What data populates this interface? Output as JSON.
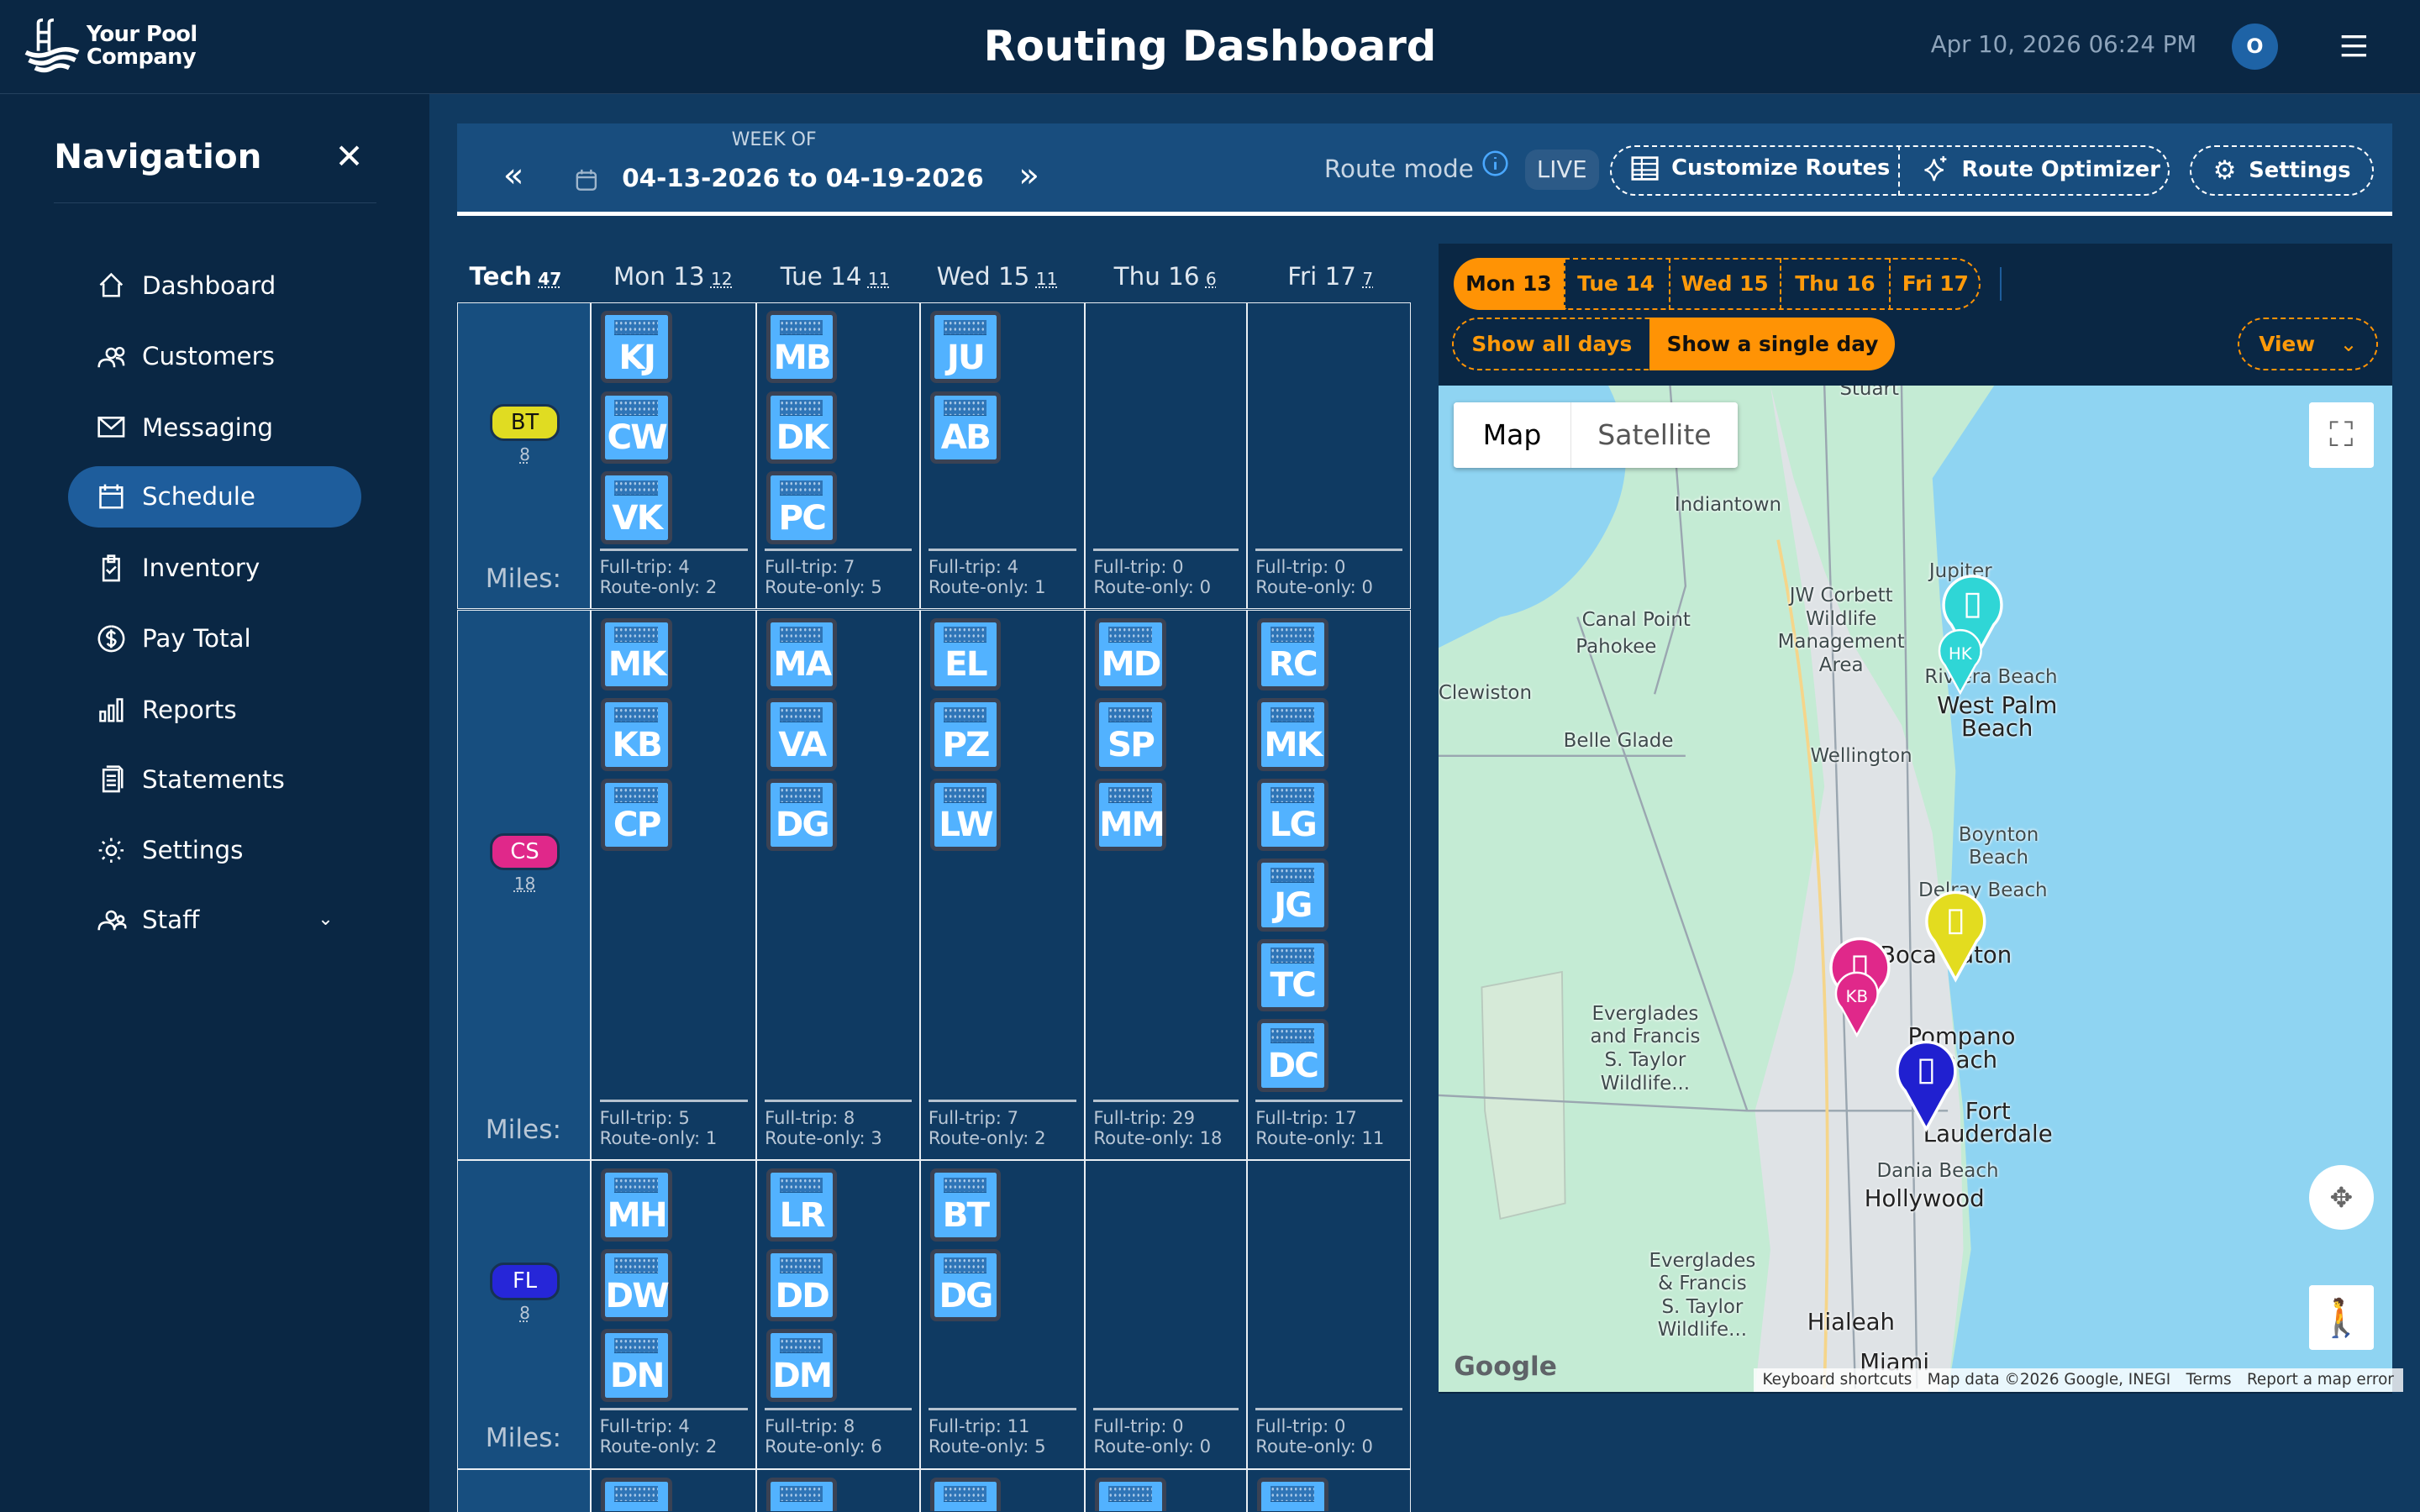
{
  "header": {
    "company_line1": "Your Pool",
    "company_line2": "Company",
    "title": "Routing Dashboard",
    "datetime": "Apr 10, 2026 06:24 PM",
    "avatar": "O"
  },
  "nav": {
    "title": "Navigation",
    "items": [
      {
        "label": "Dashboard",
        "icon": "home-icon"
      },
      {
        "label": "Customers",
        "icon": "users-icon"
      },
      {
        "label": "Messaging",
        "icon": "mail-icon"
      },
      {
        "label": "Schedule",
        "icon": "calendar-icon",
        "active": true
      },
      {
        "label": "Inventory",
        "icon": "clipboard-icon"
      },
      {
        "label": "Pay Total",
        "icon": "dollar-icon"
      },
      {
        "label": "Reports",
        "icon": "bar-chart-icon"
      },
      {
        "label": "Statements",
        "icon": "document-icon"
      },
      {
        "label": "Settings",
        "icon": "gear-icon"
      },
      {
        "label": "Staff",
        "icon": "staff-icon"
      }
    ]
  },
  "toolbar": {
    "week_of": "WEEK OF",
    "range": "04-13-2026 to 04-19-2026",
    "route_mode": "Route mode",
    "mode": "LIVE",
    "customize": "Customize Routes",
    "optimizer": "Route Optimizer",
    "settings": "Settings"
  },
  "schedule": {
    "columns": [
      {
        "label": "Tech",
        "count": "47"
      },
      {
        "label": "Mon 13",
        "count": "12"
      },
      {
        "label": "Tue 14",
        "count": "11"
      },
      {
        "label": "Wed 15",
        "count": "11"
      },
      {
        "label": "Thu 16",
        "count": "6"
      },
      {
        "label": "Fri 17",
        "count": "7"
      }
    ],
    "miles_label": "Miles:",
    "full_prefix": "Full-trip: ",
    "route_prefix": "Route-only: ",
    "rows": [
      {
        "tech": "BT",
        "color": "#e0dc22",
        "count": "8",
        "days": [
          {
            "tiles": [
              "KJ",
              "CW",
              "VK"
            ],
            "full": "4",
            "route": "2"
          },
          {
            "tiles": [
              "MB",
              "DK",
              "PC"
            ],
            "full": "7",
            "route": "5"
          },
          {
            "tiles": [
              "JU",
              "AB"
            ],
            "full": "4",
            "route": "1"
          },
          {
            "tiles": [],
            "full": "0",
            "route": "0"
          },
          {
            "tiles": [],
            "full": "0",
            "route": "0"
          }
        ]
      },
      {
        "tech": "CS",
        "color": "#e0288a",
        "count": "18",
        "days": [
          {
            "tiles": [
              "MK",
              "KB",
              "CP"
            ],
            "full": "5",
            "route": "1"
          },
          {
            "tiles": [
              "MA",
              "VA",
              "DG"
            ],
            "full": "8",
            "route": "3"
          },
          {
            "tiles": [
              "EL",
              "PZ",
              "LW"
            ],
            "full": "7",
            "route": "2"
          },
          {
            "tiles": [
              "MD",
              "SP",
              "MM"
            ],
            "full": "29",
            "route": "18"
          },
          {
            "tiles": [
              "RC",
              "MK",
              "LG",
              "JG",
              "TC",
              "DC"
            ],
            "full": "17",
            "route": "11"
          }
        ]
      },
      {
        "tech": "FL",
        "color": "#2626d8",
        "count": "8",
        "days": [
          {
            "tiles": [
              "MH",
              "DW",
              "DN"
            ],
            "full": "4",
            "route": "2"
          },
          {
            "tiles": [
              "LR",
              "DD",
              "DM"
            ],
            "full": "8",
            "route": "6"
          },
          {
            "tiles": [
              "BT",
              "DG"
            ],
            "full": "11",
            "route": "5"
          },
          {
            "tiles": [],
            "full": "0",
            "route": "0"
          },
          {
            "tiles": [],
            "full": "0",
            "route": "0"
          }
        ]
      },
      {
        "tech": "",
        "color": "",
        "count": "",
        "days": [
          {
            "tiles": [
              ""
            ]
          },
          {
            "tiles": [
              ""
            ]
          },
          {
            "tiles": [
              ""
            ]
          },
          {
            "tiles": [
              ""
            ]
          },
          {
            "tiles": [
              ""
            ]
          }
        ]
      }
    ]
  },
  "map_panel": {
    "days": [
      "Mon 13",
      "Tue 14",
      "Wed 15",
      "Thu 16",
      "Fri 17"
    ],
    "selected_day": "Mon 13",
    "show_all": "Show all days",
    "show_single": "Show a single day",
    "view": "View",
    "accent": "#ff9305",
    "map_type": [
      "Map",
      "Satellite"
    ],
    "labels": [
      "Stuart",
      "Indiantown",
      "Jupiter",
      "JW Corbett Wildlife Management Area",
      "Canal Point",
      "Pahokee",
      "Riviera Beach",
      "West Palm Beach",
      "Belle Glade",
      "Wellington",
      "Boynton Beach",
      "Delray Beach",
      "Boca Raton",
      "Pompano Beach",
      "Everglades and Francis S. Taylor Wildlife...",
      "Fort Lauderdale",
      "Dania Beach",
      "Hollywood",
      "Everglades & Francis S. Taylor Wildlife...",
      "Hialeah",
      "Miami",
      "Clewiston"
    ],
    "markers": [
      {
        "label": "",
        "color": "#2fd6d6"
      },
      {
        "label": "HK",
        "color": "#2fd6d6"
      },
      {
        "label": "",
        "color": "#e3dc1f"
      },
      {
        "label": "",
        "color": "#e0288a"
      },
      {
        "label": "KB",
        "color": "#e0288a"
      },
      {
        "label": "",
        "color": "#2020d0"
      }
    ],
    "footer": [
      "Keyboard shortcuts",
      "Map data ©2026 Google, INEGI",
      "Terms",
      "Report a map error"
    ],
    "brand": "Google"
  }
}
